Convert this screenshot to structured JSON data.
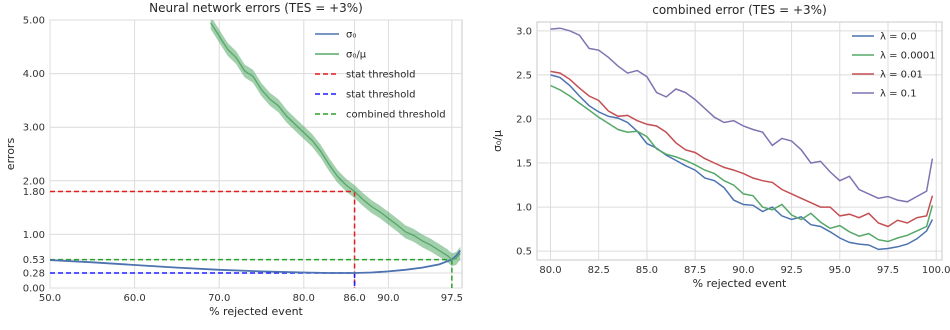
{
  "chart_data": [
    {
      "type": "line",
      "title": "Neural network errors (TES = +3%)",
      "xlabel": "% rejected event",
      "ylabel": "errors",
      "xlim": [
        50,
        98.7
      ],
      "ylim": [
        0,
        5
      ],
      "xticks": [
        50,
        60,
        70,
        80,
        86,
        90,
        97.5
      ],
      "xtick_labels": [
        "50.0",
        "60.0",
        "70.0",
        "80.0",
        "86.0",
        "90.0",
        "97.5"
      ],
      "yticks": [
        0,
        0.28,
        0.53,
        1.0,
        1.8,
        2.0,
        3.0,
        4.0,
        5.0
      ],
      "ytick_labels": [
        "0.00",
        "0.28",
        "0.53",
        "1.00",
        "1.80",
        "2.00",
        "3.00",
        "4.00",
        "5.00"
      ],
      "grid": true,
      "legend_position": "upper-right",
      "legend": [
        "σ₀",
        "σ₀/μ",
        "stat threshold",
        "stat threshold",
        "combined threshold"
      ],
      "series": [
        {
          "name": "σ₀",
          "color": "#4c72b0",
          "x": [
            50,
            55,
            60,
            65,
            70,
            75,
            80,
            83,
            86,
            88,
            90,
            92,
            94,
            96,
            97,
            97.5,
            98,
            98.5
          ],
          "y": [
            0.52,
            0.48,
            0.43,
            0.38,
            0.34,
            0.31,
            0.29,
            0.28,
            0.28,
            0.29,
            0.31,
            0.34,
            0.38,
            0.44,
            0.5,
            0.53,
            0.6,
            0.7
          ]
        },
        {
          "name": "σ₀/μ",
          "color": "#55a868",
          "band": 0.12,
          "x": [
            69,
            70,
            71,
            72,
            73,
            74,
            75,
            76,
            77,
            78,
            79,
            80,
            81,
            82,
            83,
            84,
            85,
            86,
            87,
            88,
            89,
            90,
            91,
            92,
            93,
            94,
            95,
            96,
            97,
            97.5,
            98,
            98.5
          ],
          "y": [
            4.95,
            4.7,
            4.45,
            4.3,
            4.05,
            3.95,
            3.7,
            3.52,
            3.4,
            3.2,
            3.05,
            2.9,
            2.75,
            2.55,
            2.3,
            2.08,
            1.92,
            1.8,
            1.65,
            1.52,
            1.42,
            1.3,
            1.18,
            1.05,
            0.98,
            0.88,
            0.8,
            0.7,
            0.6,
            0.53,
            0.55,
            0.65
          ]
        }
      ],
      "thresholds": [
        {
          "name": "stat threshold",
          "color": "#e41a1c",
          "x": 86.0,
          "y": 1.8
        },
        {
          "name": "stat threshold",
          "color": "#1f1fff",
          "x": 86.0,
          "y": 0.28
        },
        {
          "name": "combined threshold",
          "color": "#2ca02c",
          "x": 97.5,
          "y": 0.53
        }
      ]
    },
    {
      "type": "line",
      "title": "combined error (TES = +3%)",
      "xlabel": "% rejected event",
      "ylabel": "σ₀/μ",
      "xlim": [
        79.3,
        100.3
      ],
      "ylim": [
        0.4,
        3.1
      ],
      "xticks": [
        80,
        82.5,
        85,
        87.5,
        90,
        92.5,
        95,
        97.5,
        100
      ],
      "xtick_labels": [
        "80.0",
        "82.5",
        "85.0",
        "87.5",
        "90.0",
        "92.5",
        "95.0",
        "97.5",
        "100.0"
      ],
      "yticks": [
        0.5,
        1.0,
        1.5,
        2.0,
        2.5,
        3.0
      ],
      "ytick_labels": [
        "0.5",
        "1.0",
        "1.5",
        "2.0",
        "2.5",
        "3.0"
      ],
      "grid": true,
      "legend_position": "upper-right",
      "x": [
        80,
        80.5,
        81,
        81.5,
        82,
        82.5,
        83,
        83.5,
        84,
        84.5,
        85,
        85.5,
        86,
        86.5,
        87,
        87.5,
        88,
        88.5,
        89,
        89.5,
        90,
        90.5,
        91,
        91.5,
        92,
        92.5,
        93,
        93.5,
        94,
        94.5,
        95,
        95.5,
        96,
        96.5,
        97,
        97.5,
        98,
        98.5,
        99,
        99.5,
        99.8
      ],
      "series": [
        {
          "name": "λ = 0.0",
          "color": "#4c72b0",
          "y": [
            2.5,
            2.47,
            2.38,
            2.26,
            2.15,
            2.08,
            2.03,
            2.01,
            1.96,
            1.86,
            1.72,
            1.67,
            1.59,
            1.53,
            1.47,
            1.42,
            1.33,
            1.3,
            1.22,
            1.08,
            1.03,
            1.02,
            0.95,
            1.0,
            0.9,
            0.86,
            0.89,
            0.8,
            0.78,
            0.72,
            0.65,
            0.6,
            0.58,
            0.57,
            0.52,
            0.53,
            0.55,
            0.58,
            0.64,
            0.73,
            0.86
          ]
        },
        {
          "name": "λ = 0.0001",
          "color": "#55a868",
          "y": [
            2.38,
            2.33,
            2.26,
            2.18,
            2.1,
            2.02,
            1.95,
            1.88,
            1.85,
            1.86,
            1.8,
            1.66,
            1.6,
            1.57,
            1.53,
            1.48,
            1.42,
            1.38,
            1.3,
            1.25,
            1.15,
            1.13,
            1.0,
            0.97,
            1.03,
            0.91,
            0.86,
            0.93,
            0.83,
            0.76,
            0.79,
            0.72,
            0.67,
            0.7,
            0.63,
            0.61,
            0.65,
            0.68,
            0.73,
            0.78,
            1.02
          ]
        },
        {
          "name": "λ = 0.01",
          "color": "#c44e52",
          "y": [
            2.54,
            2.52,
            2.45,
            2.35,
            2.26,
            2.21,
            2.09,
            2.03,
            2.04,
            1.98,
            1.94,
            1.92,
            1.85,
            1.73,
            1.65,
            1.62,
            1.55,
            1.5,
            1.45,
            1.42,
            1.38,
            1.33,
            1.3,
            1.28,
            1.2,
            1.15,
            1.1,
            1.05,
            1.0,
            1.0,
            0.9,
            0.92,
            0.88,
            0.93,
            0.82,
            0.78,
            0.85,
            0.82,
            0.88,
            0.9,
            1.13
          ]
        },
        {
          "name": "λ = 0.1",
          "color": "#8172b2",
          "y": [
            3.02,
            3.03,
            3.0,
            2.95,
            2.8,
            2.78,
            2.7,
            2.6,
            2.52,
            2.55,
            2.48,
            2.3,
            2.25,
            2.34,
            2.3,
            2.22,
            2.12,
            2.02,
            1.96,
            1.98,
            1.92,
            1.88,
            1.85,
            1.7,
            1.78,
            1.75,
            1.65,
            1.5,
            1.52,
            1.4,
            1.3,
            1.35,
            1.2,
            1.15,
            1.1,
            1.12,
            1.08,
            1.06,
            1.12,
            1.18,
            1.55
          ]
        }
      ]
    }
  ]
}
